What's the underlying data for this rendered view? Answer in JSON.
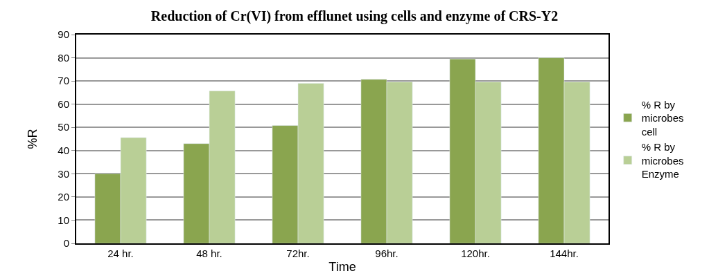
{
  "chart_data": {
    "type": "bar",
    "title": "Reduction of Cr(VI) from efflunet using cells and enzyme of CRS-Y2",
    "xlabel": "Time",
    "ylabel": "%R",
    "categories": [
      "24 hr.",
      "48 hr.",
      "72hr.",
      "96hr.",
      "120hr.",
      "144hr."
    ],
    "series": [
      {
        "name": "% R by microbes cell",
        "color": "#8aa54f",
        "values": [
          30,
          43,
          50.8,
          70.7,
          79.5,
          80
        ]
      },
      {
        "name": "% R by microbes Enzyme",
        "color": "#b9cf96",
        "values": [
          45.6,
          65.7,
          69,
          69.6,
          69.6,
          69.6
        ]
      }
    ],
    "ylim": [
      0,
      90
    ],
    "yticks": [
      0,
      10,
      20,
      30,
      40,
      50,
      60,
      70,
      80,
      90
    ],
    "grid": "y",
    "legend": "right"
  }
}
